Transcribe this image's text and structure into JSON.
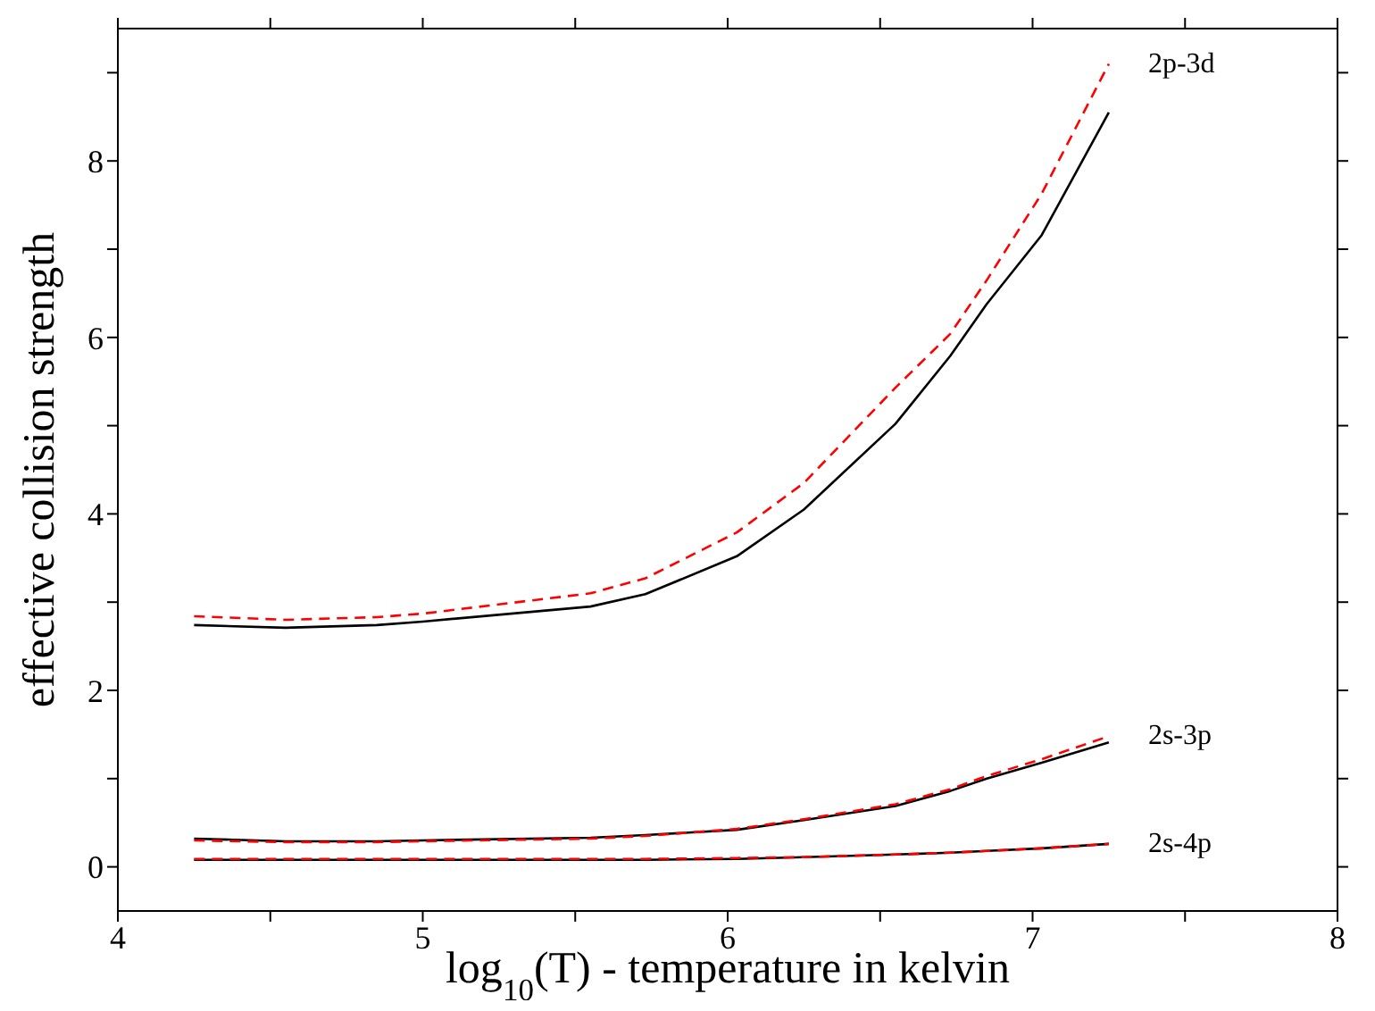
{
  "chart_data": {
    "type": "line",
    "xlabel": "log$_{10}$(T) - temperature in kelvin",
    "ylabel": "effective collision strength",
    "x": [
      4.25,
      4.55,
      4.85,
      5.0,
      5.55,
      5.73,
      6.03,
      6.25,
      6.55,
      6.73,
      6.85,
      7.03,
      7.25
    ],
    "series": [
      {
        "color": "#000000",
        "line_style": "solid",
        "values": [
          2.74,
          2.71,
          2.74,
          2.78,
          2.95,
          3.09,
          3.52,
          4.05,
          5.02,
          5.79,
          6.38,
          7.16,
          8.55
        ]
      },
      {
        "color": "#ff0000",
        "line_style": "dashed",
        "values": [
          2.84,
          2.8,
          2.83,
          2.87,
          3.1,
          3.27,
          3.79,
          4.35,
          5.43,
          6.04,
          6.65,
          7.63,
          9.1
        ]
      },
      {
        "color": "#000000",
        "line_style": "solid",
        "values": [
          0.32,
          0.29,
          0.29,
          0.3,
          0.33,
          0.36,
          0.42,
          0.53,
          0.69,
          0.86,
          1.0,
          1.18,
          1.41
        ]
      },
      {
        "color": "#ff0000",
        "line_style": "dashed",
        "values": [
          0.3,
          0.28,
          0.28,
          0.29,
          0.32,
          0.35,
          0.43,
          0.54,
          0.71,
          0.88,
          1.03,
          1.22,
          1.48
        ]
      },
      {
        "color": "#000000",
        "line_style": "solid",
        "values": [
          0.08,
          0.08,
          0.08,
          0.08,
          0.08,
          0.08,
          0.09,
          0.11,
          0.14,
          0.16,
          0.18,
          0.21,
          0.26
        ]
      },
      {
        "color": "#ff0000",
        "line_style": "dashed",
        "values": [
          0.09,
          0.09,
          0.09,
          0.09,
          0.09,
          0.09,
          0.1,
          0.11,
          0.14,
          0.16,
          0.18,
          0.21,
          0.26
        ]
      }
    ],
    "annotations": [
      "2p-3d",
      "2s-3p",
      "2s-4p"
    ],
    "xlim": [
      4,
      8
    ],
    "xticks": [
      4,
      {
        "value": 4.5,
        "label": null
      },
      5,
      {
        "value": 5.5,
        "label": null
      },
      6,
      {
        "value": 6.5,
        "label": null
      },
      7,
      {
        "value": 7.5,
        "label": null
      },
      8
    ],
    "ylim": [
      -0.5,
      9.5
    ],
    "yticks": [
      0,
      {
        "value": 1,
        "label": null
      },
      2,
      {
        "value": 3,
        "label": null
      },
      4,
      {
        "value": 5,
        "label": null
      },
      6,
      {
        "value": 7,
        "label": null
      },
      8,
      {
        "value": 9,
        "label": null
      }
    ],
    "grid": false,
    "legend": false,
    "marker": "none"
  }
}
